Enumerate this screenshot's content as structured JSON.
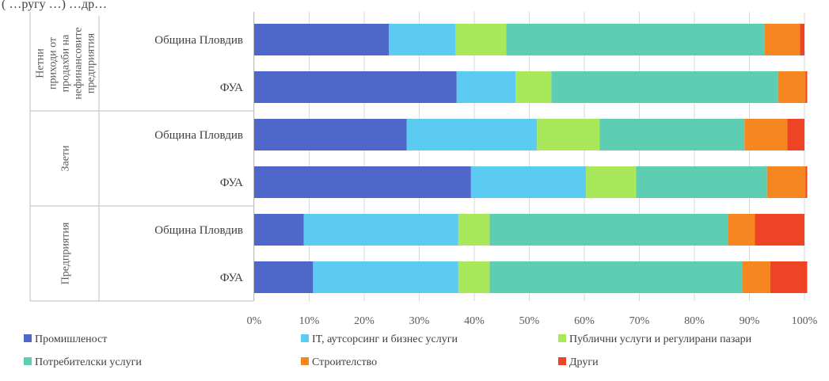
{
  "page": {
    "top_fragment": "( …ругу …) …др…"
  },
  "chart_data": {
    "type": "bar",
    "orientation": "horizontal",
    "stacked": "percent",
    "groups": [
      {
        "label_lines": [
          "Нетни",
          "приходи от",
          "продахби на",
          "нефинансовите",
          "предприятия"
        ],
        "categories": [
          "Община Пловдив",
          "ФУА"
        ]
      },
      {
        "label_lines": [
          "Заети"
        ],
        "categories": [
          "Община Пловдив",
          "ФУА"
        ]
      },
      {
        "label_lines": [
          "Предприятия"
        ],
        "categories": [
          "Община Пловдив",
          "ФУА"
        ]
      }
    ],
    "categories": [
      "Община Пловдив",
      "ФУА",
      "Община Пловдив",
      "ФУА",
      "Община Пловдив",
      "ФУА"
    ],
    "series": [
      {
        "name": "Промишленост",
        "color": "#4F67C8",
        "values": [
          24.5,
          36.8,
          27.7,
          39.4,
          9.0,
          10.7
        ]
      },
      {
        "name": "IT, аутсорсинг и бизнес услуги",
        "color": "#5CCBF1",
        "values": [
          12.1,
          10.7,
          23.7,
          20.9,
          28.1,
          26.4
        ]
      },
      {
        "name": "Публични услуги и регулирани пазари",
        "color": "#A9E85A",
        "values": [
          9.2,
          6.5,
          11.4,
          9.1,
          5.7,
          5.7
        ]
      },
      {
        "name": "Потребителски услуги",
        "color": "#5DCEB1",
        "values": [
          46.9,
          41.2,
          26.3,
          23.8,
          43.3,
          45.9
        ]
      },
      {
        "name": "Строителство",
        "color": "#F6861F",
        "values": [
          6.5,
          5.0,
          7.8,
          7.0,
          4.9,
          5.1
        ]
      },
      {
        "name": "Други",
        "color": "#EE4425",
        "values": [
          0.8,
          0.3,
          3.1,
          0.3,
          9.0,
          6.7
        ]
      }
    ],
    "x_ticks": [
      "0%",
      "10%",
      "20%",
      "30%",
      "40%",
      "50%",
      "60%",
      "70%",
      "80%",
      "90%",
      "100%"
    ],
    "xlim": [
      0,
      100
    ],
    "grid": true,
    "legend_position": "bottom"
  }
}
